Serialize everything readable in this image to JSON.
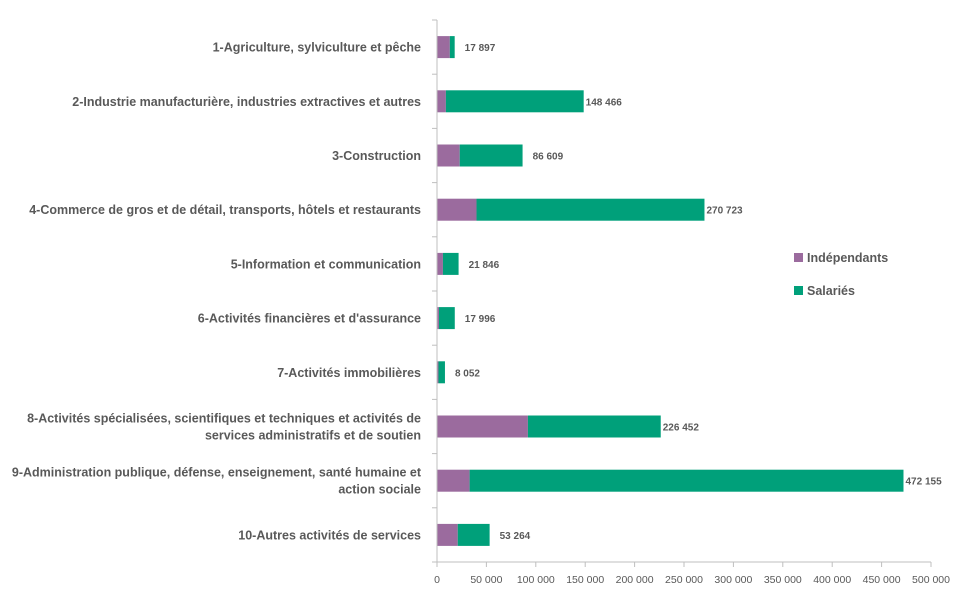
{
  "colors": {
    "independants": "#9b6b9e",
    "salaries": "#00a07a",
    "axis": "#bfbfbf",
    "text": "#595959"
  },
  "chart_data": {
    "type": "bar",
    "orientation": "horizontal",
    "stacked": true,
    "categories": [
      [
        "1-Agriculture, sylviculture et pêche"
      ],
      [
        "2-Industrie manufacturière, industries extractives et autres"
      ],
      [
        "3-Construction"
      ],
      [
        "4-Commerce de gros et de détail, transports, hôtels et restaurants"
      ],
      [
        "5-Information et communication"
      ],
      [
        "6-Activités financières et d'assurance"
      ],
      [
        "7-Activités immobilières"
      ],
      [
        "8-Activités spécialisées, scientifiques et techniques et activités de",
        "services administratifs et de soutien"
      ],
      [
        "9-Administration publique, défense, enseignement, santé humaine et",
        "action sociale"
      ],
      [
        "10-Autres activités de services"
      ]
    ],
    "series": [
      {
        "name": "Indépendants",
        "values": [
          13000,
          9000,
          23000,
          40000,
          6000,
          2000,
          1500,
          92000,
          33000,
          21000
        ]
      },
      {
        "name": "Salariés",
        "values": [
          4897,
          139466,
          63609,
          230723,
          15846,
          15996,
          6552,
          134452,
          439155,
          32264
        ]
      }
    ],
    "totals": [
      17897,
      148466,
      86609,
      270723,
      21846,
      17996,
      8052,
      226452,
      472155,
      53264
    ],
    "total_labels": [
      "17 897",
      "148 466",
      "86 609",
      "270 723",
      "21 846",
      "17 996",
      "8 052",
      "226 452",
      "472 155",
      "53 264"
    ],
    "xlim": [
      0,
      500000
    ],
    "xticks": [
      0,
      50000,
      100000,
      150000,
      200000,
      250000,
      300000,
      350000,
      400000,
      450000,
      500000
    ],
    "xtick_labels": [
      "0",
      "50 000",
      "100 000",
      "150 000",
      "200 000",
      "250 000",
      "300 000",
      "350 000",
      "400 000",
      "450 000",
      "500 000"
    ],
    "legend": {
      "position": "right",
      "entries": [
        "Indépendants",
        "Salariés"
      ]
    },
    "grid": false,
    "title": "",
    "xlabel": "",
    "ylabel": ""
  }
}
